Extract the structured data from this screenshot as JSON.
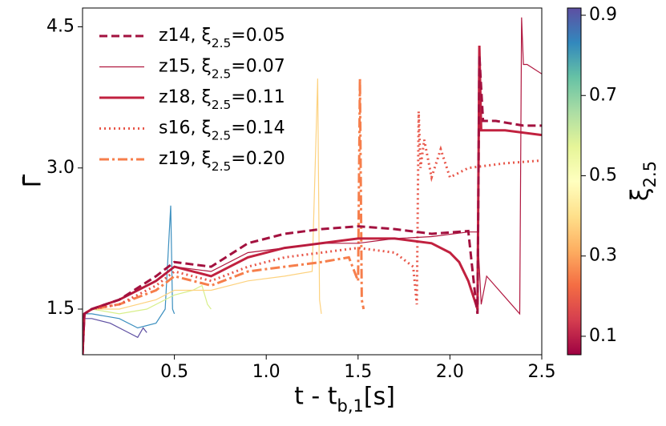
{
  "chart_data": {
    "type": "line",
    "xlabel": "t - tb,1[s]",
    "ylabel": "Γ̄",
    "xlim": [
      0,
      2.5
    ],
    "ylim": [
      1.015,
      4.7
    ],
    "xticks": [
      0.5,
      {
        "value": 1.0,
        "label": "1.0"
      },
      1.5,
      {
        "value": 2.0,
        "label": "2.0"
      },
      2.5
    ],
    "yticks": [
      1.5,
      {
        "value": 3.0,
        "label": "3.0"
      },
      4.5
    ],
    "legend": "upper left",
    "series": [
      {
        "name": "z14, ξ2.5=0.05",
        "color": "#a3113f",
        "style": "dashed",
        "width": 3,
        "x": [
          0,
          0.01,
          0.05,
          0.2,
          0.4,
          0.5,
          0.7,
          0.9,
          1.1,
          1.3,
          1.5,
          1.7,
          1.9,
          2.1,
          2.14,
          2.15,
          2.16,
          2.18,
          2.25,
          2.4,
          2.5
        ],
        "values": [
          1.02,
          1.45,
          1.5,
          1.6,
          1.85,
          2.0,
          1.95,
          2.2,
          2.3,
          2.35,
          2.38,
          2.35,
          2.3,
          2.33,
          1.6,
          1.45,
          4.2,
          3.5,
          3.5,
          3.45,
          3.45
        ]
      },
      {
        "name": "z15, ξ2.5=0.07",
        "color": "#b0173f",
        "style": "solid",
        "width": 1.2,
        "x": [
          0,
          0.01,
          0.05,
          0.2,
          0.4,
          0.5,
          0.7,
          0.9,
          1.1,
          1.3,
          1.5,
          1.7,
          1.9,
          2.1,
          2.15,
          2.17,
          2.2,
          2.38,
          2.39,
          2.4,
          2.42,
          2.5
        ],
        "values": [
          1.02,
          1.45,
          1.5,
          1.6,
          1.8,
          1.95,
          1.9,
          2.1,
          2.15,
          2.2,
          2.2,
          2.25,
          2.27,
          2.32,
          2.32,
          1.55,
          1.85,
          1.45,
          4.6,
          4.1,
          4.1,
          4.0
        ]
      },
      {
        "name": "z18, ξ2.5=0.11",
        "color": "#c1213f",
        "style": "solid",
        "width": 3,
        "x": [
          0,
          0.01,
          0.05,
          0.2,
          0.4,
          0.5,
          0.7,
          0.9,
          1.1,
          1.3,
          1.5,
          1.7,
          1.9,
          2.0,
          2.05,
          2.1,
          2.15,
          2.16,
          2.17,
          2.2,
          2.3,
          2.5
        ],
        "values": [
          1.02,
          1.45,
          1.5,
          1.6,
          1.8,
          1.95,
          1.85,
          2.05,
          2.15,
          2.2,
          2.25,
          2.25,
          2.2,
          2.1,
          2.0,
          1.8,
          1.5,
          4.3,
          3.4,
          3.4,
          3.4,
          3.35
        ]
      },
      {
        "name": "s16, ξ2.5=0.14",
        "color": "#e8574a",
        "style": "dotted",
        "width": 3,
        "x": [
          0,
          0.01,
          0.05,
          0.2,
          0.4,
          0.5,
          0.7,
          0.9,
          1.1,
          1.3,
          1.5,
          1.7,
          1.8,
          1.82,
          1.83,
          1.84,
          1.86,
          1.9,
          1.95,
          2.0,
          2.1,
          2.3,
          2.5
        ],
        "values": [
          1.02,
          1.45,
          1.5,
          1.55,
          1.75,
          1.9,
          1.8,
          1.95,
          2.05,
          2.1,
          2.15,
          2.1,
          1.95,
          1.55,
          3.6,
          3.0,
          3.3,
          2.9,
          3.2,
          2.9,
          3.0,
          3.05,
          3.08
        ]
      },
      {
        "name": "z19, ξ2.5=0.20",
        "color": "#f67e4b",
        "style": "dashdot",
        "width": 3,
        "x": [
          0,
          0.01,
          0.05,
          0.2,
          0.4,
          0.5,
          0.7,
          0.9,
          1.1,
          1.3,
          1.45,
          1.5,
          1.51,
          1.52,
          1.53
        ],
        "values": [
          1.02,
          1.45,
          1.5,
          1.55,
          1.7,
          1.85,
          1.75,
          1.9,
          1.95,
          2.0,
          2.05,
          1.8,
          3.95,
          1.6,
          1.5
        ]
      },
      {
        "color": "#fdd27f",
        "style": "solid",
        "width": 1.2,
        "x": [
          0,
          0.01,
          0.05,
          0.2,
          0.4,
          0.5,
          0.7,
          0.9,
          1.1,
          1.25,
          1.28,
          1.29,
          1.3
        ],
        "values": [
          1.02,
          1.45,
          1.5,
          1.5,
          1.6,
          1.7,
          1.7,
          1.8,
          1.85,
          1.9,
          3.95,
          1.6,
          1.45
        ]
      },
      {
        "color": "#d8ef8b",
        "style": "solid",
        "width": 1.2,
        "x": [
          0,
          0.01,
          0.05,
          0.2,
          0.35,
          0.5,
          0.6,
          0.65,
          0.68,
          0.7
        ],
        "values": [
          1.02,
          1.45,
          1.5,
          1.45,
          1.5,
          1.65,
          1.7,
          1.75,
          1.55,
          1.5
        ]
      },
      {
        "color": "#3b8fbf",
        "style": "solid",
        "width": 1.2,
        "x": [
          0,
          0.01,
          0.05,
          0.2,
          0.3,
          0.4,
          0.45,
          0.48,
          0.49,
          0.5
        ],
        "values": [
          1.02,
          1.45,
          1.45,
          1.4,
          1.3,
          1.35,
          1.5,
          2.6,
          1.5,
          1.45
        ]
      },
      {
        "color": "#5e4fa2",
        "style": "solid",
        "width": 1.2,
        "x": [
          0,
          0.01,
          0.05,
          0.15,
          0.25,
          0.3,
          0.33,
          0.35
        ],
        "values": [
          1.02,
          1.4,
          1.4,
          1.35,
          1.25,
          1.2,
          1.3,
          1.25
        ]
      }
    ],
    "colorbar": {
      "label": "ξ2.5",
      "lim": [
        0.054,
        0.918
      ],
      "ticks": [
        0.1,
        0.3,
        0.5,
        0.7,
        0.9
      ],
      "colors": [
        "#9e0142",
        "#d53e4f",
        "#f46d43",
        "#fdae61",
        "#fee08b",
        "#ffffbf",
        "#e6f598",
        "#abdda4",
        "#66c2a5",
        "#3288bd",
        "#5e4fa2"
      ]
    }
  }
}
